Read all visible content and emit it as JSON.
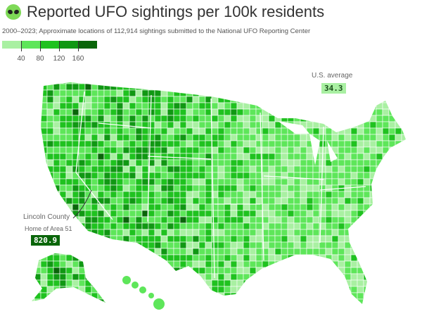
{
  "header": {
    "icon": "alien-emoji-icon",
    "title": "Reported UFO sightings per 100k residents",
    "subtitle": "2000–2023; Approximate locations of 112,914 sightings submitted to the National UFO Reporting Center"
  },
  "legend": {
    "colors": [
      "#a9f0a2",
      "#5ee65a",
      "#1fc21f",
      "#109813",
      "#096509"
    ],
    "ticks": [
      "40",
      "80",
      "120",
      "160"
    ]
  },
  "annotations": {
    "us_average": {
      "label": "U.S. average",
      "value": "34.3"
    },
    "lincoln": {
      "label": "Lincoln County",
      "sublabel": "Home of Area 51",
      "value": "820.9"
    }
  },
  "map": {
    "region": "United States counties",
    "border_color": "#ffffff"
  }
}
